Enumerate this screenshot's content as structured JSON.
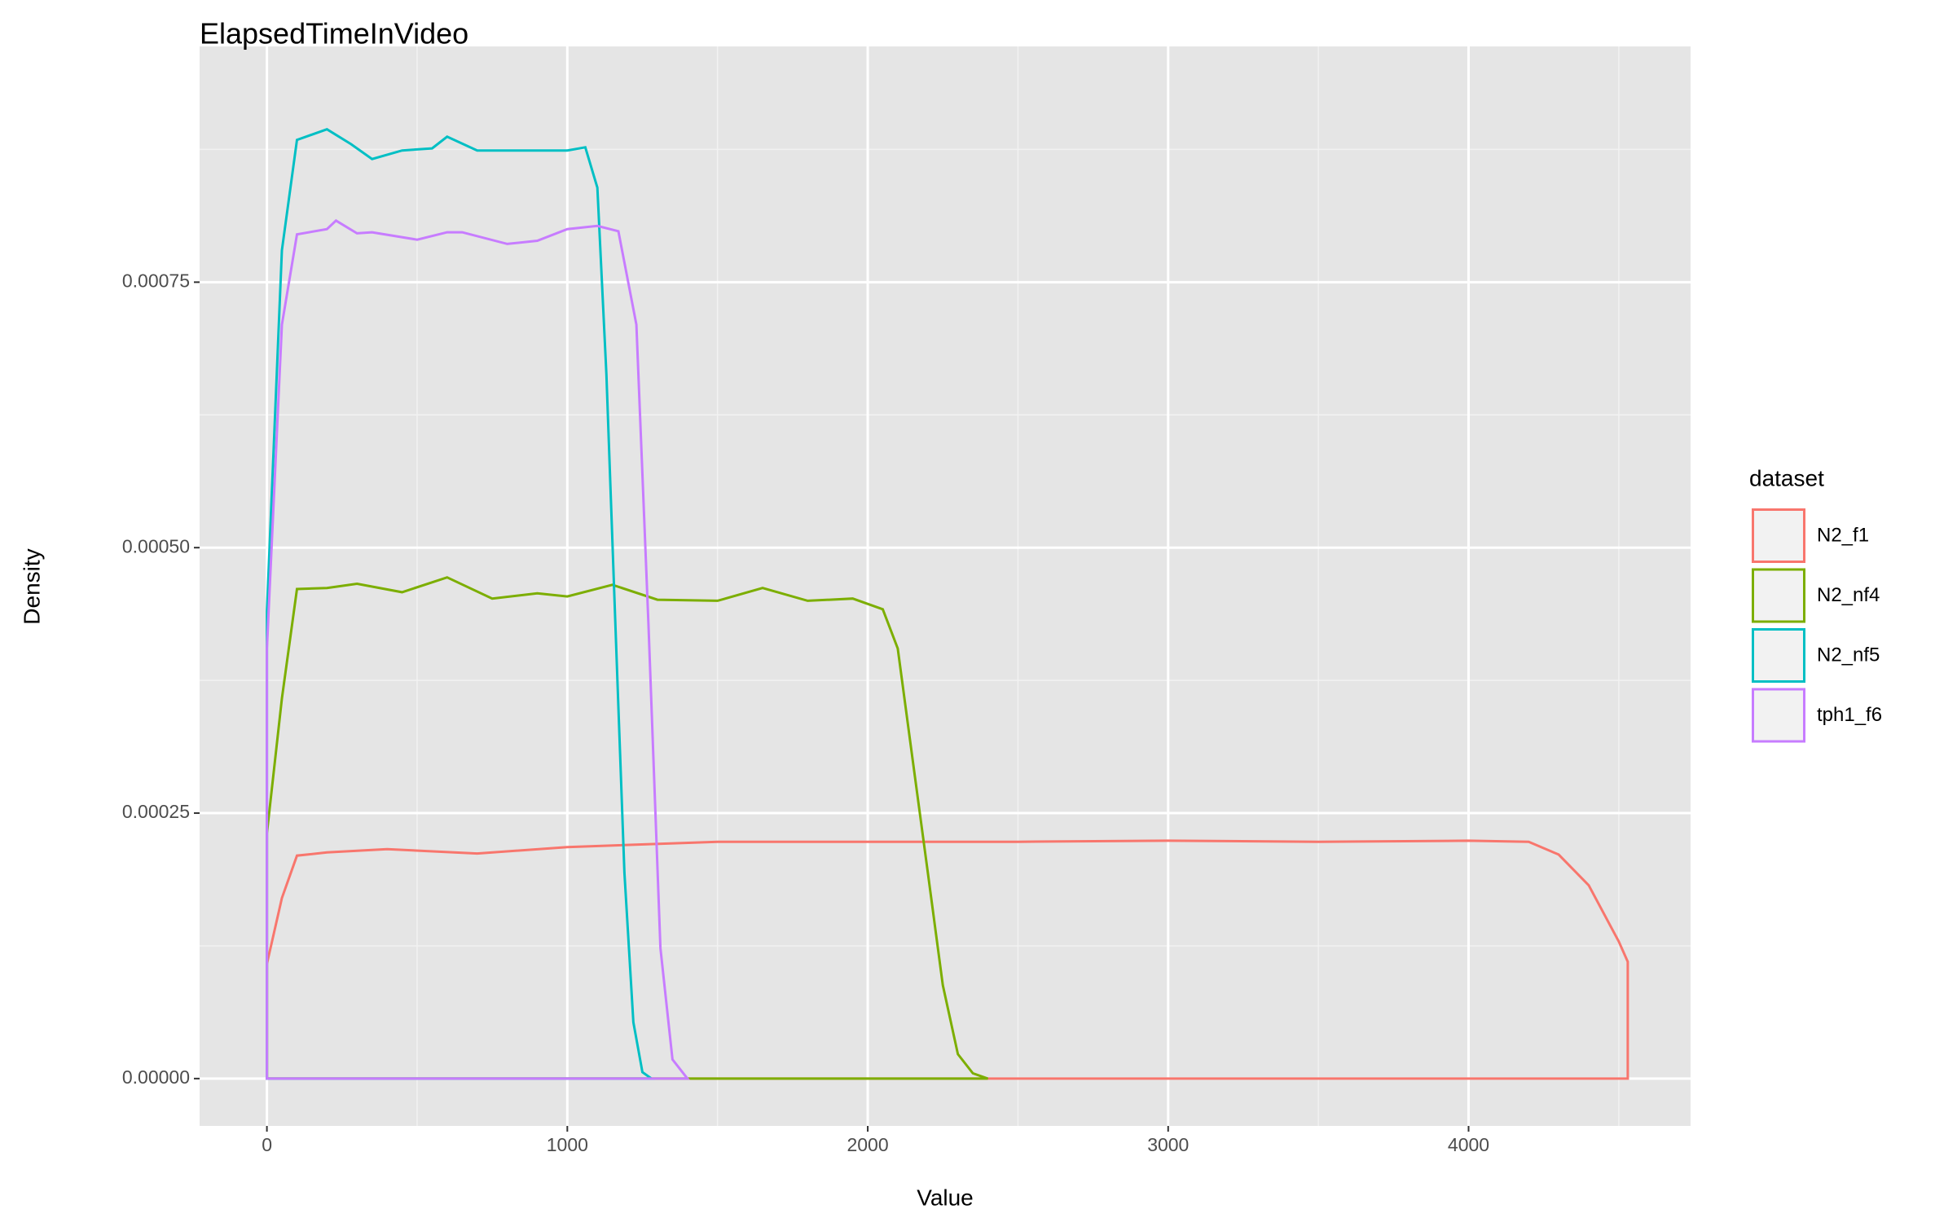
{
  "chart_data": {
    "type": "density",
    "title": "ElapsedTimeInVideo",
    "x_label": "Value",
    "y_label": "Density",
    "legend_title": "dataset",
    "legend_position": "right",
    "grid": true,
    "xlim": [
      -224,
      4739
    ],
    "xticks": [
      0,
      1000,
      2000,
      3000,
      4000
    ],
    "ylim": [
      -4.46e-05,
      0.000972
    ],
    "yticks": [
      {
        "value": 0,
        "label": "0.00000"
      },
      {
        "value": 0.00025,
        "label": "0.00025"
      },
      {
        "value": 0.0005,
        "label": "0.00050"
      },
      {
        "value": 0.00075,
        "label": "0.00075"
      }
    ],
    "series": [
      {
        "name": "N2_f1",
        "color": "#F8766D",
        "x": [
          0,
          0,
          50,
          100,
          200,
          400,
          700,
          1000,
          1500,
          2000,
          2500,
          3000,
          3500,
          4000,
          4200,
          4300,
          4400,
          4500,
          4530,
          4530
        ],
        "values": [
          0,
          0.000108,
          0.00017,
          0.00021,
          0.000213,
          0.000216,
          0.000212,
          0.000218,
          0.000223,
          0.000223,
          0.000223,
          0.000224,
          0.000223,
          0.000224,
          0.000223,
          0.000211,
          0.000182,
          0.000129,
          0.00011,
          0
        ]
      },
      {
        "name": "N2_nf4",
        "color": "#7CAE00",
        "x": [
          0,
          0,
          50,
          100,
          200,
          300,
          450,
          600,
          750,
          900,
          1000,
          1150,
          1300,
          1500,
          1650,
          1800,
          1950,
          2050,
          2100,
          2150,
          2200,
          2250,
          2300,
          2350,
          2400
        ],
        "values": [
          0,
          0.000231,
          0.000358,
          0.000461,
          0.000462,
          0.000466,
          0.000458,
          0.000472,
          0.000452,
          0.000457,
          0.000454,
          0.000465,
          0.000451,
          0.00045,
          0.000462,
          0.00045,
          0.000452,
          0.000442,
          0.000405,
          0.000299,
          0.000194,
          8.8e-05,
          2.3e-05,
          5e-06,
          0
        ]
      },
      {
        "name": "N2_nf5",
        "color": "#00BFC4",
        "x": [
          0,
          0,
          50,
          100,
          200,
          280,
          350,
          450,
          550,
          600,
          700,
          900,
          1000,
          1060,
          1100,
          1130,
          1160,
          1190,
          1220,
          1250,
          1280
        ],
        "values": [
          0,
          0.00044,
          0.00078,
          0.000884,
          0.000894,
          0.00088,
          0.000866,
          0.000874,
          0.000876,
          0.000887,
          0.000874,
          0.000874,
          0.000874,
          0.000877,
          0.000839,
          0.000663,
          0.000428,
          0.000194,
          5.3e-05,
          6e-06,
          0
        ]
      },
      {
        "name": "tph1_f6",
        "color": "#C77CFF",
        "x": [
          0,
          0,
          50,
          100,
          200,
          230,
          300,
          350,
          500,
          600,
          650,
          800,
          900,
          1000,
          1100,
          1170,
          1230,
          1270,
          1310,
          1350,
          1400
        ],
        "values": [
          0,
          0.000405,
          0.00071,
          0.000795,
          0.0008,
          0.000808,
          0.000796,
          0.000797,
          0.00079,
          0.000797,
          0.000797,
          0.000786,
          0.000789,
          0.0008,
          0.000803,
          0.000798,
          0.00071,
          0.000428,
          0.000123,
          1.8e-05,
          0
        ]
      }
    ]
  }
}
